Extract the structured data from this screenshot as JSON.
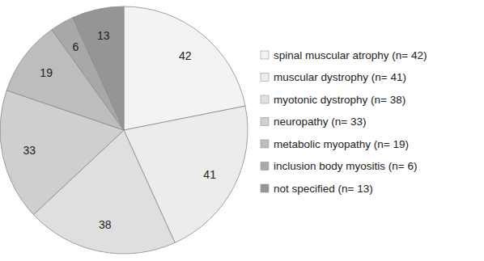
{
  "chart_data": {
    "type": "pie",
    "categories": [
      "spinal muscular atrophy (n= 42)",
      "muscular dystrophy (n= 41)",
      "myotonic dystrophy (n= 38)",
      "neuropathy (n= 33)",
      "metabolic myopathy (n= 19)",
      "inclusion body myositis (n= 6)",
      "not specified (n= 13)"
    ],
    "values": [
      42,
      41,
      38,
      33,
      19,
      6,
      13
    ],
    "colors": [
      "#f3f3f3",
      "#ececec",
      "#dfdfdf",
      "#cfcfcf",
      "#bdbdbd",
      "#a8a8a8",
      "#959595"
    ],
    "data_labels": true,
    "legend": "right"
  }
}
